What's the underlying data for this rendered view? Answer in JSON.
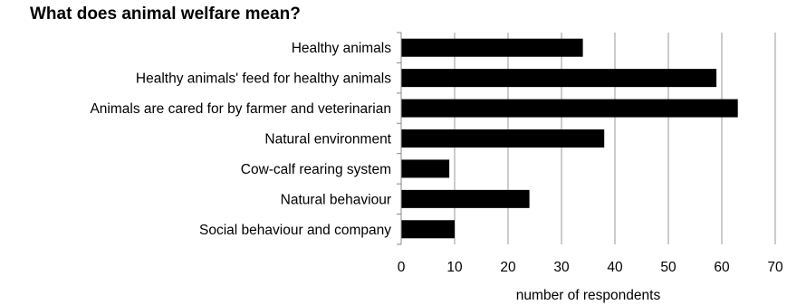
{
  "chart_data": {
    "type": "bar",
    "orientation": "horizontal",
    "title": "What does animal welfare mean?",
    "xlabel": "number of respondents",
    "ylabel": "",
    "categories": [
      "Healthy animals",
      "Healthy animals' feed for healthy animals",
      "Animals are cared for by farmer and veterinarian",
      "Natural environment",
      "Cow-calf rearing system",
      "Natural behaviour",
      "Social behaviour and company"
    ],
    "values": [
      34,
      59,
      63,
      38,
      9,
      24,
      10
    ],
    "xlim": [
      0,
      70
    ],
    "xticks": [
      0,
      10,
      20,
      30,
      40,
      50,
      60,
      70
    ],
    "grid": true,
    "legend": "none",
    "bar_color": "#000000",
    "grid_color": "#999999"
  }
}
